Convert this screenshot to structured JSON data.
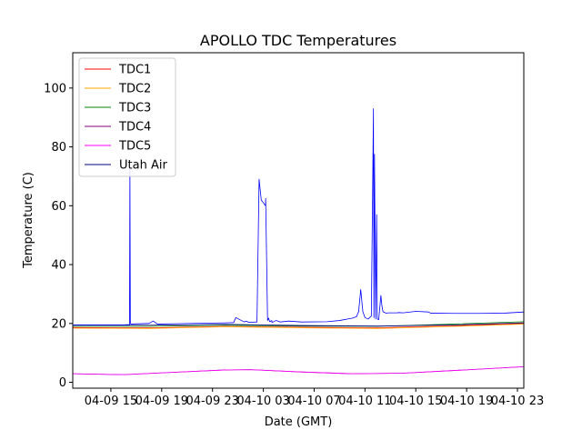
{
  "chart_data": {
    "type": "line",
    "title": "APOLLO TDC Temperatures",
    "xlabel": "Date (GMT)",
    "ylabel": "Temperature (C)",
    "xlim": [
      "2023-04-09T12:00",
      "2023-04-10T23:30"
    ],
    "ylim": [
      -2,
      112
    ],
    "x_ticks": [
      {
        "label": "04-09 15",
        "at": "2023-04-09T15:00"
      },
      {
        "label": "04-09 19",
        "at": "2023-04-09T19:00"
      },
      {
        "label": "04-09 23",
        "at": "2023-04-09T23:00"
      },
      {
        "label": "04-10 03",
        "at": "2023-04-10T03:00"
      },
      {
        "label": "04-10 07",
        "at": "2023-04-10T07:00"
      },
      {
        "label": "04-10 11",
        "at": "2023-04-10T11:00"
      },
      {
        "label": "04-10 15",
        "at": "2023-04-10T15:00"
      },
      {
        "label": "04-10 19",
        "at": "2023-04-10T19:00"
      },
      {
        "label": "04-10 23",
        "at": "2023-04-10T23:00"
      }
    ],
    "y_ticks": [
      0,
      20,
      40,
      60,
      80,
      100
    ],
    "grid": false,
    "legend_position": "top-left",
    "series": [
      {
        "name": "TDC1",
        "color": "#ff0000",
        "x": [
          "2023-04-09T12:00",
          "2023-04-09T18:00",
          "2023-04-10T00:00",
          "2023-04-10T06:00",
          "2023-04-10T12:00",
          "2023-04-10T18:00",
          "2023-04-10T23:30"
        ],
        "y": [
          18.6,
          18.5,
          19.0,
          18.7,
          18.5,
          19.2,
          20.0
        ]
      },
      {
        "name": "TDC2",
        "color": "#ffa500",
        "x": [
          "2023-04-09T12:00",
          "2023-04-09T18:00",
          "2023-04-10T00:00",
          "2023-04-10T06:00",
          "2023-04-10T12:00",
          "2023-04-10T18:00",
          "2023-04-10T23:30"
        ],
        "y": [
          18.4,
          18.3,
          18.9,
          18.5,
          18.3,
          19.0,
          19.8
        ]
      },
      {
        "name": "TDC3",
        "color": "#008000",
        "x": [
          "2023-04-09T12:00",
          "2023-04-09T18:00",
          "2023-04-10T00:00",
          "2023-04-10T06:00",
          "2023-04-10T12:00",
          "2023-04-10T18:00",
          "2023-04-10T23:30"
        ],
        "y": [
          19.0,
          19.0,
          19.4,
          19.1,
          19.0,
          19.8,
          20.6
        ]
      },
      {
        "name": "TDC4",
        "color": "#800080",
        "x": [
          "2023-04-09T12:00",
          "2023-04-09T16:00",
          "2023-04-09T20:00",
          "2023-04-10T00:00",
          "2023-04-10T02:00",
          "2023-04-10T06:00",
          "2023-04-10T10:00",
          "2023-04-10T14:00",
          "2023-04-10T18:00",
          "2023-04-10T23:30"
        ],
        "y": [
          2.9,
          2.6,
          3.4,
          4.2,
          4.3,
          3.5,
          2.9,
          3.1,
          4.0,
          5.3
        ]
      },
      {
        "name": "TDC5",
        "color": "#ff00ff",
        "x": [
          "2023-04-09T12:00",
          "2023-04-09T16:00",
          "2023-04-09T20:00",
          "2023-04-10T00:00",
          "2023-04-10T02:00",
          "2023-04-10T06:00",
          "2023-04-10T10:00",
          "2023-04-10T14:00",
          "2023-04-10T18:00",
          "2023-04-10T23:30"
        ],
        "y": [
          2.9,
          2.6,
          3.4,
          4.2,
          4.3,
          3.5,
          2.9,
          3.1,
          4.0,
          5.3
        ]
      },
      {
        "name": "Utah Air",
        "color": "#000080",
        "x": [
          "2023-04-09T12:00",
          "2023-04-09T18:00",
          "2023-04-10T00:00",
          "2023-04-10T06:00",
          "2023-04-10T12:00",
          "2023-04-10T18:00",
          "2023-04-10T23:30"
        ],
        "y": [
          19.4,
          19.4,
          19.7,
          19.3,
          19.1,
          19.5,
          20.2
        ]
      },
      {
        "name": "",
        "color": "#0000ff",
        "x": [
          "2023-04-09T12:00",
          "2023-04-09T14:00",
          "2023-04-09T16:00",
          "2023-04-09T16:28",
          "2023-04-09T16:30",
          "2023-04-09T16:32",
          "2023-04-09T16:34",
          "2023-04-09T18:00",
          "2023-04-09T18:20",
          "2023-04-09T18:40",
          "2023-04-09T20:00",
          "2023-04-10T00:00",
          "2023-04-10T00:40",
          "2023-04-10T00:50",
          "2023-04-10T01:30",
          "2023-04-10T01:40",
          "2023-04-10T01:50",
          "2023-04-10T02:30",
          "2023-04-10T02:40",
          "2023-04-10T02:50",
          "2023-04-10T03:10",
          "2023-04-10T03:11",
          "2023-04-10T03:20",
          "2023-04-10T03:25",
          "2023-04-10T03:30",
          "2023-04-10T03:40",
          "2023-04-10T03:41",
          "2023-04-10T04:00",
          "2023-04-10T04:20",
          "2023-04-10T05:00",
          "2023-04-10T06:00",
          "2023-04-10T08:00",
          "2023-04-10T09:00",
          "2023-04-10T10:00",
          "2023-04-10T10:20",
          "2023-04-10T10:30",
          "2023-04-10T10:40",
          "2023-04-10T10:50",
          "2023-04-10T11:00",
          "2023-04-10T11:15",
          "2023-04-10T11:30",
          "2023-04-10T11:40",
          "2023-04-10T11:42",
          "2023-04-10T11:45",
          "2023-04-10T11:50",
          "2023-04-10T11:55",
          "2023-04-10T11:58",
          "2023-04-10T12:05",
          "2023-04-10T12:15",
          "2023-04-10T12:20",
          "2023-04-10T12:25",
          "2023-04-10T12:40",
          "2023-04-10T12:50",
          "2023-04-10T13:10",
          "2023-04-10T13:20",
          "2023-04-10T13:30",
          "2023-04-10T13:40",
          "2023-04-10T14:00",
          "2023-04-10T15:00",
          "2023-04-10T16:00",
          "2023-04-10T16:10",
          "2023-04-10T18:00",
          "2023-04-10T20:00",
          "2023-04-10T22:00",
          "2023-04-10T23:30"
        ],
        "y": [
          19.5,
          19.5,
          19.5,
          19.6,
          73.0,
          20.0,
          19.8,
          20.0,
          20.8,
          19.8,
          19.9,
          20.2,
          20.3,
          22.0,
          20.5,
          20.8,
          20.4,
          20.5,
          69.0,
          62.0,
          60.0,
          62.5,
          21.0,
          21.8,
          20.6,
          21.0,
          20.3,
          21.0,
          20.5,
          20.8,
          20.5,
          20.6,
          21.0,
          21.8,
          22.3,
          24.0,
          31.5,
          24.0,
          22.0,
          21.5,
          22.5,
          93.0,
          22.0,
          77.5,
          21.5,
          57.0,
          21.5,
          21.3,
          29.5,
          26.0,
          24.0,
          23.5,
          23.6,
          23.6,
          23.6,
          23.6,
          23.7,
          23.6,
          24.1,
          23.9,
          23.5,
          23.4,
          23.4,
          23.5,
          23.9
        ]
      }
    ]
  }
}
